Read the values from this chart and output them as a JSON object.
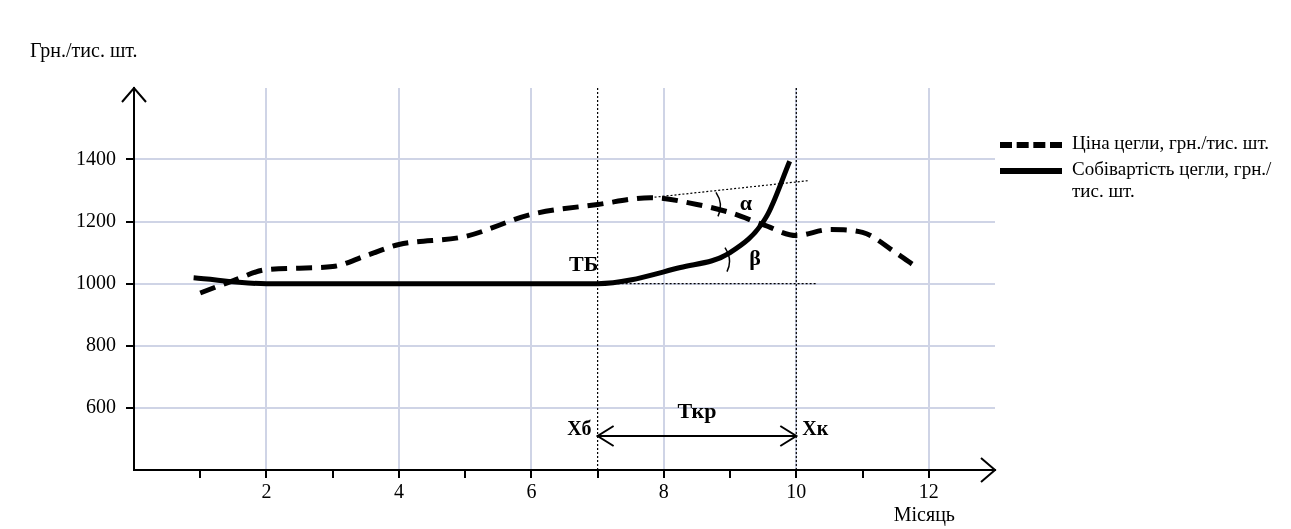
{
  "chart_data": {
    "type": "line",
    "xlabel": "Місяць",
    "ylabel": "Грн./тис. шт.",
    "xlim": [
      0,
      13
    ],
    "ylim": [
      400,
      1630
    ],
    "xticks": [
      {
        "value": 1,
        "label": null
      },
      2,
      {
        "value": 3,
        "label": null
      },
      4,
      {
        "value": 5,
        "label": null
      },
      6,
      {
        "value": 7,
        "label": null
      },
      8,
      {
        "value": 9,
        "label": null
      },
      10,
      {
        "value": 11,
        "label": null
      },
      12
    ],
    "yticks": [
      600,
      800,
      1000,
      1200,
      1400
    ],
    "grid": true,
    "legend": "top right",
    "series": [
      {
        "name": "Ціна цегли, грн./тис. шт.",
        "color": "#000000",
        "line_style": "dashed",
        "x": [
          1,
          1.5,
          2,
          3,
          3.5,
          4,
          5,
          6,
          7,
          7.8,
          8.5,
          9,
          9.5,
          10,
          10.5,
          11,
          11.5,
          11.8
        ],
        "values": [
          970,
          1010,
          1045,
          1055,
          1090,
          1126,
          1152,
          1223,
          1255,
          1277,
          1255,
          1229,
          1190,
          1155,
          1174,
          1165,
          1100,
          1055
        ]
      },
      {
        "name": "Собівартість цегли, грн./тис. шт.",
        "color": "#000000",
        "line_style": "solid",
        "x": [
          0.9,
          2,
          7,
          8.25,
          9,
          9.55,
          9.9
        ],
        "values": [
          1019,
          1000,
          1000,
          1052,
          1100,
          1216,
          1394
        ]
      },
      {
        "type": "line",
        "color": "#000000",
        "line_style": "dotted",
        "x": [
          7.8,
          10.2
        ],
        "values": [
          1277,
          1332
        ]
      },
      {
        "type": "line",
        "color": "#000000",
        "line_style": "dotted",
        "x": [
          7,
          10.3
        ],
        "values": [
          1000,
          1000
        ]
      }
    ],
    "ref_lines": [
      {
        "axis": "x",
        "value": 7,
        "label": "Хб",
        "line_style": "dotted",
        "color": "#000000"
      },
      {
        "axis": "x",
        "value": 10,
        "label": "Хк",
        "line_style": "dotted",
        "color": "#000000"
      }
    ],
    "annotations": [
      {
        "text": "ТБ",
        "x": 7,
        "y": 1000
      },
      "α",
      "β",
      "Ткр"
    ]
  }
}
